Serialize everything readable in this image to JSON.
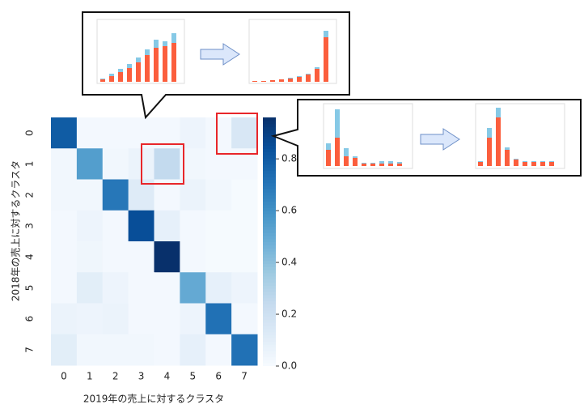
{
  "chart_data": {
    "type": "heatmap",
    "xlabel": "2019年の売上に対するクラスタ",
    "ylabel": "2018年の売上に対するクラスタ",
    "x_categories": [
      "0",
      "1",
      "2",
      "3",
      "4",
      "5",
      "6",
      "7"
    ],
    "y_categories": [
      "0",
      "1",
      "2",
      "3",
      "4",
      "5",
      "6",
      "7"
    ],
    "values": [
      [
        0.8,
        0.02,
        0.02,
        0.02,
        0.02,
        0.05,
        0.02,
        0.15
      ],
      [
        0.03,
        0.55,
        0.03,
        0.06,
        0.25,
        0.03,
        0.02,
        0.02
      ],
      [
        0.03,
        0.03,
        0.7,
        0.12,
        0.02,
        0.06,
        0.03,
        0.01
      ],
      [
        0.02,
        0.05,
        0.02,
        0.85,
        0.08,
        0.02,
        0.01,
        0.01
      ],
      [
        0.02,
        0.04,
        0.02,
        0.02,
        0.96,
        0.02,
        0.01,
        0.01
      ],
      [
        0.02,
        0.1,
        0.05,
        0.02,
        0.02,
        0.5,
        0.08,
        0.05
      ],
      [
        0.06,
        0.05,
        0.06,
        0.02,
        0.02,
        0.05,
        0.72,
        0.02
      ],
      [
        0.1,
        0.03,
        0.03,
        0.03,
        0.02,
        0.08,
        0.02,
        0.72
      ]
    ],
    "colormap": "Blues",
    "zlim": [
      0,
      0.96
    ],
    "zticks": [
      {
        "value": 0,
        "label": "0.0"
      },
      {
        "value": 0.2,
        "label": "0.2"
      },
      {
        "value": 0.4,
        "label": "0.4"
      },
      {
        "value": 0.6,
        "label": "0.6"
      },
      {
        "value": 0.8,
        "label": "0.8"
      }
    ]
  }
}
